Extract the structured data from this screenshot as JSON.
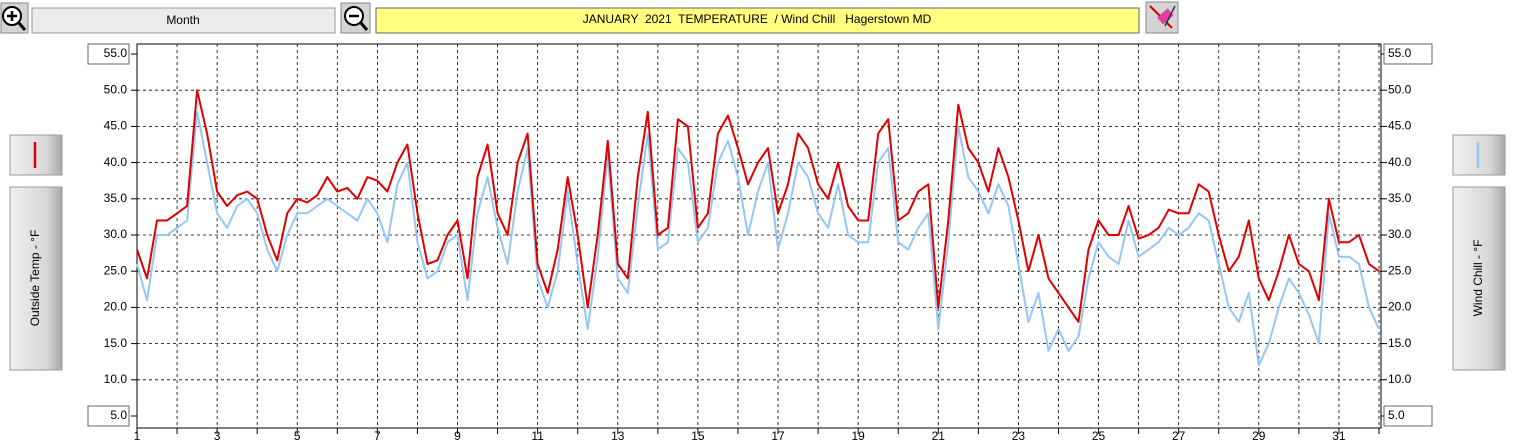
{
  "toolbar": {
    "range": "Month"
  },
  "chart_data": {
    "type": "line",
    "title": "JANUARY  2021  TEMPERATURE  / Wind Chill   Hagerstown MD",
    "x": [
      1,
      1.25,
      1.5,
      1.75,
      2,
      2.25,
      2.5,
      2.75,
      3,
      3.25,
      3.5,
      3.75,
      4,
      4.25,
      4.5,
      4.75,
      5,
      5.25,
      5.5,
      5.75,
      6,
      6.25,
      6.5,
      6.75,
      7,
      7.25,
      7.5,
      7.75,
      8,
      8.25,
      8.5,
      8.75,
      9,
      9.25,
      9.5,
      9.75,
      10,
      10.25,
      10.5,
      10.75,
      11,
      11.25,
      11.5,
      11.75,
      12,
      12.25,
      12.5,
      12.75,
      13,
      13.25,
      13.5,
      13.75,
      14,
      14.25,
      14.5,
      14.75,
      15,
      15.25,
      15.5,
      15.75,
      16,
      16.25,
      16.5,
      16.75,
      17,
      17.25,
      17.5,
      17.75,
      18,
      18.25,
      18.5,
      18.75,
      19,
      19.25,
      19.5,
      19.75,
      20,
      20.25,
      20.5,
      20.75,
      21,
      21.25,
      21.5,
      21.75,
      22,
      22.25,
      22.5,
      22.75,
      23,
      23.25,
      23.5,
      23.75,
      24,
      24.25,
      24.5,
      24.75,
      25,
      25.25,
      25.5,
      25.75,
      26,
      26.25,
      26.5,
      26.75,
      27,
      27.25,
      27.5,
      27.75,
      28,
      28.25,
      28.5,
      28.75,
      29,
      29.25,
      29.5,
      29.75,
      30,
      30.25,
      30.5,
      30.75,
      31,
      31.25,
      31.5,
      31.75,
      32
    ],
    "xlim": [
      1,
      32
    ],
    "xticks": [
      1,
      3,
      5,
      7,
      9,
      11,
      13,
      15,
      17,
      19,
      21,
      23,
      25,
      27,
      29,
      31
    ],
    "xminorticks": [
      2,
      4,
      6,
      8,
      10,
      12,
      14,
      16,
      18,
      20,
      22,
      24,
      26,
      28,
      30,
      32
    ],
    "ylim": [
      5,
      55
    ],
    "yticks": [
      {
        "value": 55,
        "label": "55.0"
      },
      {
        "value": 50,
        "label": "50.0"
      },
      {
        "value": 45,
        "label": "45.0"
      },
      {
        "value": 40,
        "label": "40.0"
      },
      {
        "value": 35,
        "label": "35.0"
      },
      {
        "value": 30,
        "label": "30.0"
      },
      {
        "value": 25,
        "label": "25.0"
      },
      {
        "value": 20,
        "label": "20.0"
      },
      {
        "value": 15,
        "label": "15.0"
      },
      {
        "value": 10,
        "label": "10.0"
      },
      {
        "value": 5,
        "label": "5.0"
      }
    ],
    "y2lim": [
      5,
      55
    ],
    "y2ticks": [
      {
        "value": 55,
        "label": "55.0"
      },
      {
        "value": 50,
        "label": "50.0"
      },
      {
        "value": 45,
        "label": "45.0"
      },
      {
        "value": 40,
        "label": "40.0"
      },
      {
        "value": 35,
        "label": "35.0"
      },
      {
        "value": 30,
        "label": "30.0"
      },
      {
        "value": 25,
        "label": "25.0"
      },
      {
        "value": 20,
        "label": "20.0"
      },
      {
        "value": 15,
        "label": "15.0"
      },
      {
        "value": 10,
        "label": "10.0"
      },
      {
        "value": 5,
        "label": "5.0"
      }
    ],
    "grid": true,
    "series": [
      {
        "name": "Outside Temp - °F",
        "color": "#e00000",
        "values": [
          28,
          24,
          32,
          32,
          33,
          34,
          50,
          44,
          36,
          34,
          35.5,
          36,
          35,
          30,
          26.5,
          33,
          35,
          34.5,
          35.5,
          38,
          36,
          36.5,
          35,
          38,
          37.5,
          36,
          40,
          42.5,
          33,
          26,
          26.5,
          30,
          32,
          24,
          38,
          42.5,
          33,
          30,
          40,
          44,
          26,
          22,
          28,
          38,
          30,
          20,
          30,
          43,
          26,
          24,
          38,
          47,
          30,
          31,
          46,
          45,
          31,
          33,
          44,
          46.5,
          42,
          37,
          40,
          42,
          33,
          37,
          44,
          42,
          37,
          35,
          40,
          34,
          32,
          32,
          44,
          46,
          32,
          33,
          36,
          37,
          20,
          32,
          48,
          42,
          40,
          36,
          42,
          38,
          32,
          25,
          30,
          24,
          22,
          20,
          18,
          28,
          32,
          30,
          30,
          34,
          29.5,
          30,
          31,
          33.5,
          33,
          33,
          37,
          36,
          30,
          25,
          27,
          32,
          24,
          21,
          25,
          30,
          26,
          25,
          21,
          35,
          29,
          29,
          30,
          26,
          25
        ]
      },
      {
        "name": "Wind Chill - °F",
        "color": "#94c6f6",
        "axis": "y2",
        "values": [
          26,
          21,
          30,
          30,
          31,
          32,
          47,
          40,
          33,
          31,
          34,
          35,
          33,
          28,
          25,
          30,
          33,
          33,
          34,
          35,
          34,
          33,
          32,
          35,
          33,
          29,
          37,
          40,
          29,
          24,
          25,
          29,
          30,
          21,
          33,
          38,
          31,
          26,
          36,
          42,
          24,
          20,
          25,
          36,
          26,
          17,
          27,
          41,
          24,
          22,
          34,
          44,
          28,
          29,
          42,
          40,
          29,
          31,
          40,
          43,
          38,
          30,
          36,
          40,
          28,
          33,
          40,
          38,
          33,
          31,
          37,
          30,
          29,
          29,
          40,
          42,
          29,
          28,
          31,
          33,
          17,
          29,
          45,
          38,
          36,
          33,
          37,
          34,
          26,
          18,
          22,
          14,
          17,
          14,
          16,
          24,
          29,
          27,
          26,
          32,
          27,
          28,
          29,
          31,
          30,
          31,
          33,
          32,
          26,
          20,
          18,
          22,
          12,
          15,
          20,
          24,
          22,
          19,
          15,
          33,
          27,
          27,
          26,
          20,
          17
        ]
      }
    ]
  }
}
